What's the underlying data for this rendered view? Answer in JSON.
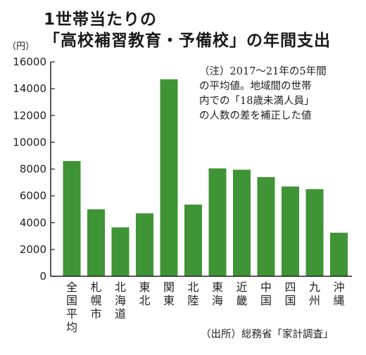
{
  "chart_data": {
    "type": "bar",
    "title_lines": [
      "1世帯当たりの",
      "「高校補習教育・予備校」の年間支出"
    ],
    "unit": "（円）",
    "ylim": [
      0,
      16000
    ],
    "yticks": [
      "0",
      "2000",
      "4000",
      "6000",
      "8000",
      "10000",
      "12000",
      "14000",
      "16000"
    ],
    "categories": [
      "全国平均",
      "札幌市",
      "北海道",
      "東北",
      "関東",
      "北陸",
      "東海",
      "近畿",
      "中国",
      "四国",
      "九州",
      "沖縄"
    ],
    "values": [
      8600,
      5000,
      3650,
      4700,
      14700,
      5350,
      8050,
      7950,
      7400,
      6700,
      6500,
      3250
    ],
    "bar_color": "#3f9436",
    "grid": false,
    "legend": "none",
    "note_lines": [
      "（注）2017〜21年の5年間",
      "の平均値。地域間の世帯",
      "内での「18歳未満人員」",
      "の人数の差を補正した値"
    ],
    "source": "（出所）総務省「家計調査」"
  }
}
